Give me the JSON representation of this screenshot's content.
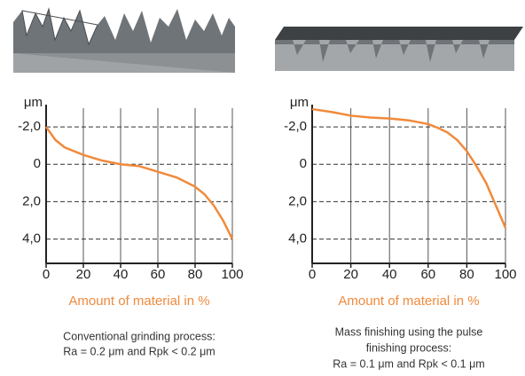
{
  "chart_data": [
    {
      "type": "line",
      "y_label": "μm",
      "x_label": "Amount of material in %",
      "caption": [
        "Conventional grinding process:",
        "Ra = 0.2 μm and Rpk < 0.2 μm"
      ],
      "x": [
        0,
        5,
        10,
        20,
        30,
        40,
        50,
        60,
        70,
        80,
        85,
        90,
        95,
        100
      ],
      "values": [
        -2.0,
        -1.3,
        -0.9,
        -0.5,
        -0.2,
        0,
        0.1,
        0.4,
        0.7,
        1.2,
        1.6,
        2.2,
        3.0,
        4.0
      ],
      "color": "#f08a3c",
      "xlim": [
        0,
        100
      ],
      "ylim": [
        -3,
        5.3
      ],
      "y_inverted": true,
      "xticks": [
        0,
        20,
        40,
        60,
        80,
        100
      ],
      "yticks": [
        {
          "value": -2,
          "label": "-2,0"
        },
        0,
        {
          "value": 2,
          "label": "2,0"
        },
        {
          "value": 4,
          "label": "4,0"
        }
      ],
      "grid": true
    },
    {
      "type": "line",
      "y_label": "μm",
      "x_label": "Amount of material in %",
      "caption": [
        "Mass finishing using the pulse",
        "finishing process:",
        "Ra = 0.1 μm and Rpk < 0.1 μm"
      ],
      "x": [
        0,
        10,
        20,
        30,
        40,
        50,
        60,
        65,
        70,
        75,
        80,
        85,
        90,
        95,
        100
      ],
      "values": [
        -2.95,
        -2.8,
        -2.6,
        -2.5,
        -2.45,
        -2.35,
        -2.15,
        -1.95,
        -1.7,
        -1.3,
        -0.7,
        0.1,
        1.0,
        2.2,
        3.4
      ],
      "color": "#f08a3c",
      "xlim": [
        0,
        100
      ],
      "ylim": [
        -3,
        5.3
      ],
      "y_inverted": true,
      "xticks": [
        0,
        20,
        40,
        60,
        80,
        100
      ],
      "yticks": [
        {
          "value": -2,
          "label": "-2,0"
        },
        0,
        {
          "value": 2,
          "label": "2,0"
        },
        {
          "value": 4,
          "label": "4,0"
        }
      ],
      "grid": true
    }
  ]
}
